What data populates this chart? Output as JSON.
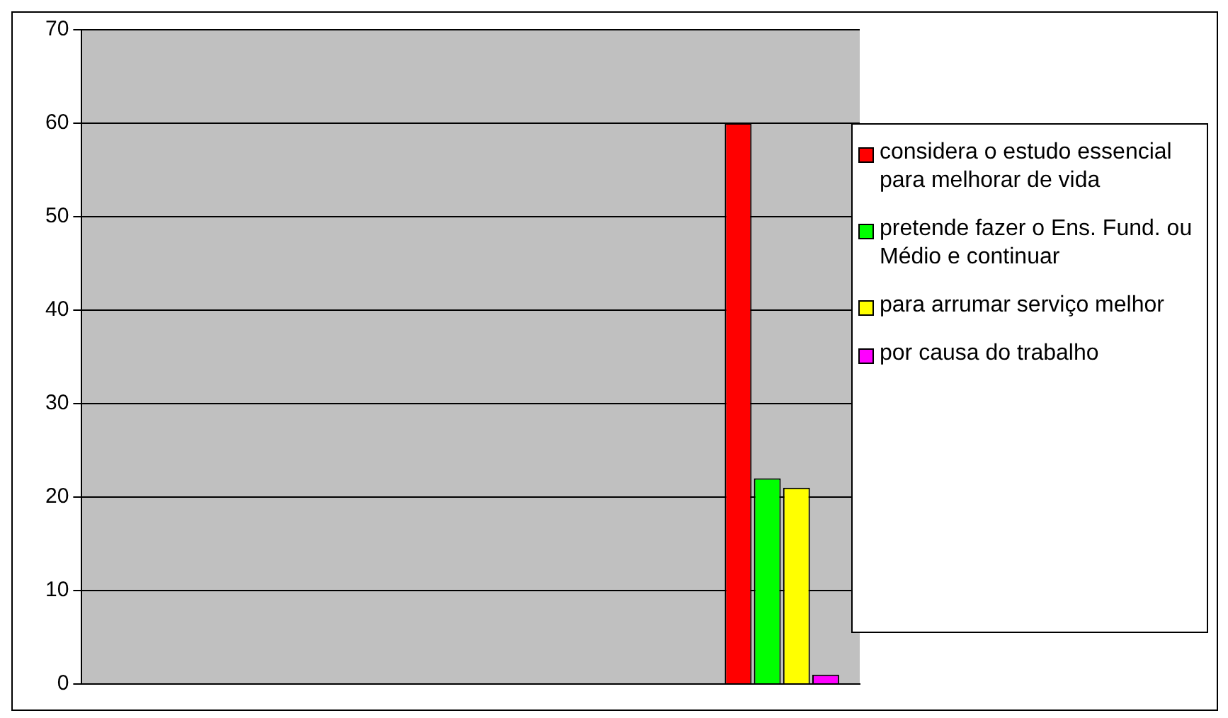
{
  "chart_data": {
    "type": "bar",
    "categories": [
      null,
      null,
      null,
      null,
      null
    ],
    "series": [
      {
        "name": "considera o estudo essencial para melhorar de vida",
        "color": "#ff0000",
        "values": [
          null,
          null,
          null,
          null,
          60
        ]
      },
      {
        "name": "pretende fazer o Ens. Fund. ou Médio e continuar",
        "color": "#00ff00",
        "values": [
          null,
          null,
          null,
          null,
          22
        ]
      },
      {
        "name": "para arrumar serviço melhor",
        "color": "#ffff00",
        "values": [
          null,
          null,
          null,
          null,
          21
        ]
      },
      {
        "name": "por causa do trabalho",
        "color": "#ff00ff",
        "values": [
          null,
          null,
          null,
          null,
          1
        ]
      }
    ],
    "ylim": [
      0,
      70
    ],
    "yticks": [
      0,
      10,
      20,
      30,
      40,
      50,
      60,
      70
    ],
    "grid": "y",
    "legend": "right"
  }
}
